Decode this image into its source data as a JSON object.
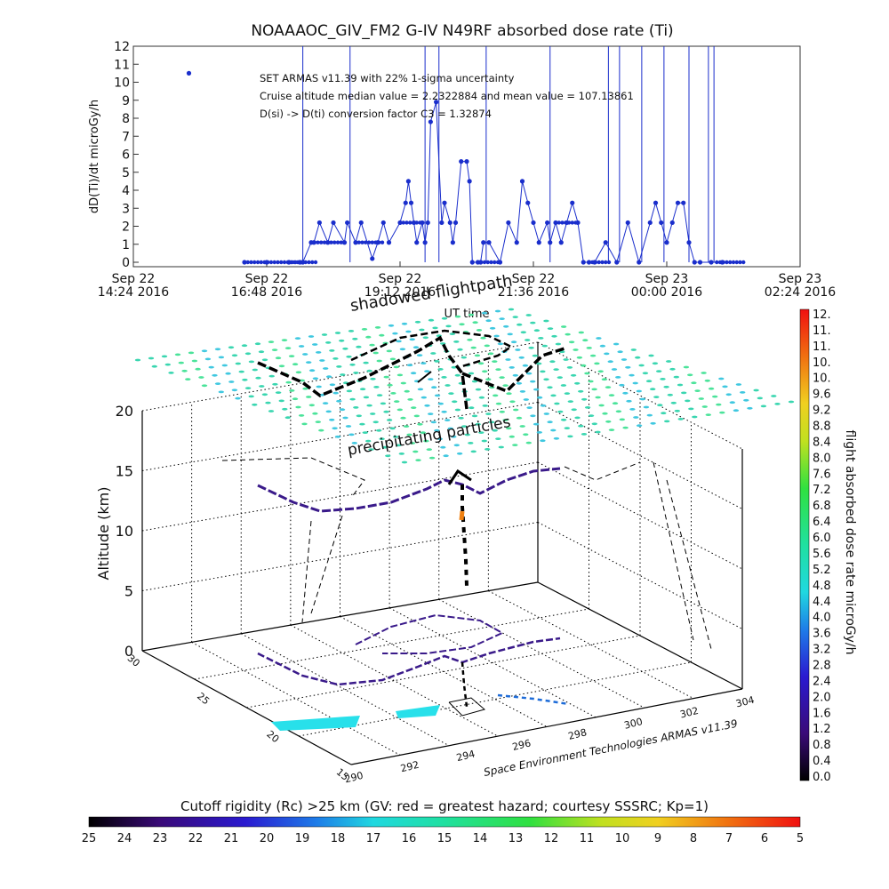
{
  "chart_data": [
    {
      "type": "line",
      "title": "NOAAAOC_GIV_FM2 G-IV    N49RF  absorbed dose rate (Ti)",
      "ylabel": "dD(Ti)/dt microGy/h",
      "xlabel": "UT time",
      "ylim": [
        0,
        12
      ],
      "yticks": [
        "0",
        "1",
        "2",
        "3",
        "4",
        "5",
        "6",
        "7",
        "8",
        "9",
        "10",
        "11",
        "12"
      ],
      "xlim": [
        0,
        12
      ],
      "xticks": [
        {
          "h": 0,
          "line1": "Sep 22",
          "line2": "14:24 2016"
        },
        {
          "h": 2.4,
          "line1": "Sep 22",
          "line2": "16:48 2016"
        },
        {
          "h": 4.8,
          "line1": "Sep 22",
          "line2": "19:12 2016"
        },
        {
          "h": 7.2,
          "line1": "Sep 22",
          "line2": "21:36 2016"
        },
        {
          "h": 9.6,
          "line1": "Sep 23",
          "line2": "00:00 2016"
        },
        {
          "h": 12,
          "line1": "Sep 23",
          "line2": "02:24 2016"
        }
      ],
      "annotations": [
        "SET ARMAS v11.39 with 22% 1-sigma uncertainty",
        "Cruise altitude median value = 2.2322884 and mean value = 107.13861",
        "D(si) -> D(ti) conversion factor C3 = 1.32874"
      ],
      "series": [
        {
          "color": "#1a2ecc",
          "x": [
            2.0,
            2.4,
            2.8,
            3.0,
            3.05,
            3.2,
            3.25,
            3.35,
            3.5,
            3.6,
            3.8,
            3.85,
            4.0,
            4.1,
            4.3,
            4.4,
            4.5,
            4.6,
            4.8,
            4.9,
            4.95,
            5.0,
            5.05,
            5.1,
            5.2,
            5.25,
            5.3,
            5.35,
            5.45,
            5.55,
            5.6,
            5.7,
            5.75,
            5.8,
            5.9,
            6.0,
            6.05,
            6.1,
            6.2,
            6.25,
            6.3,
            6.4,
            6.6,
            6.75,
            6.9,
            7.0,
            7.1,
            7.2,
            7.3,
            7.45,
            7.5,
            7.6,
            7.7,
            7.8,
            7.9,
            8.0,
            8.1,
            8.2,
            8.3,
            8.5,
            8.7,
            8.9,
            9.1,
            9.3,
            9.4,
            9.5,
            9.6,
            9.7,
            9.8,
            9.9,
            10.0,
            10.1,
            10.2,
            10.4,
            10.6
          ],
          "y": [
            0,
            0,
            0,
            0,
            0,
            1.1,
            1.1,
            2.2,
            1.1,
            2.2,
            1.1,
            2.2,
            1.1,
            2.2,
            0.2,
            1.1,
            2.2,
            1.1,
            2.2,
            3.3,
            4.5,
            3.3,
            2.2,
            1.1,
            2.2,
            1.1,
            2.2,
            7.8,
            8.9,
            2.2,
            3.3,
            2.2,
            1.1,
            2.2,
            5.6,
            5.6,
            4.5,
            0,
            0,
            0,
            1.1,
            1.1,
            0,
            2.2,
            1.1,
            4.5,
            3.3,
            2.2,
            1.1,
            2.2,
            1.1,
            2.2,
            1.1,
            2.2,
            3.3,
            2.2,
            0,
            0,
            0,
            1.1,
            0,
            2.2,
            0,
            2.2,
            3.3,
            2.2,
            1.1,
            2.2,
            3.3,
            3.3,
            1.1,
            0,
            0,
            0,
            0
          ]
        },
        {
          "color": "#1a2ecc",
          "x": [
            1.0
          ],
          "y": [
            10.5
          ]
        }
      ]
    },
    {
      "type": "scatter",
      "title": "",
      "zlabel": "Altitude (km)",
      "zlim": [
        0,
        20
      ],
      "zticks": [
        "0",
        "5",
        "10",
        "15",
        "20"
      ],
      "lat_ticks": [
        "15",
        "20",
        "25",
        "30"
      ],
      "lon_ticks": [
        "290",
        "292",
        "294",
        "296",
        "298",
        "300",
        "302",
        "304"
      ],
      "annotations": [
        "shadowed flightpath",
        "precipitating particles"
      ],
      "credit": "Space Environment Technologies ARMAS v11.39",
      "route_note": "flight track shown at altitude (black/blue/purple), projected shadow on the floor, and a grid of precipitating particle markers at 20 km"
    }
  ],
  "colorbar_right": {
    "label": "flight absorbed dose rate microGy/h",
    "ticks": [
      "12.",
      "11.",
      "11.",
      "10.",
      "10.",
      "9.6",
      "9.2",
      "8.8",
      "8.4",
      "8.0",
      "7.6",
      "7.2",
      "6.8",
      "6.4",
      "6.0",
      "5.6",
      "5.2",
      "4.8",
      "4.4",
      "4.0",
      "3.6",
      "3.2",
      "2.8",
      "2.4",
      "2.0",
      "1.6",
      "1.2",
      "0.8",
      "0.4",
      "0.0"
    ]
  },
  "colorbar_bottom": {
    "label": "Cutoff rigidity (Rc) >25 km (GV: red = greatest hazard; courtesy SSSRC; Kp=1)",
    "ticks": [
      "25",
      "24",
      "23",
      "22",
      "21",
      "20",
      "19",
      "18",
      "17",
      "16",
      "15",
      "14",
      "13",
      "12",
      "11",
      "10",
      "9",
      "8",
      "7",
      "6",
      "5"
    ]
  }
}
